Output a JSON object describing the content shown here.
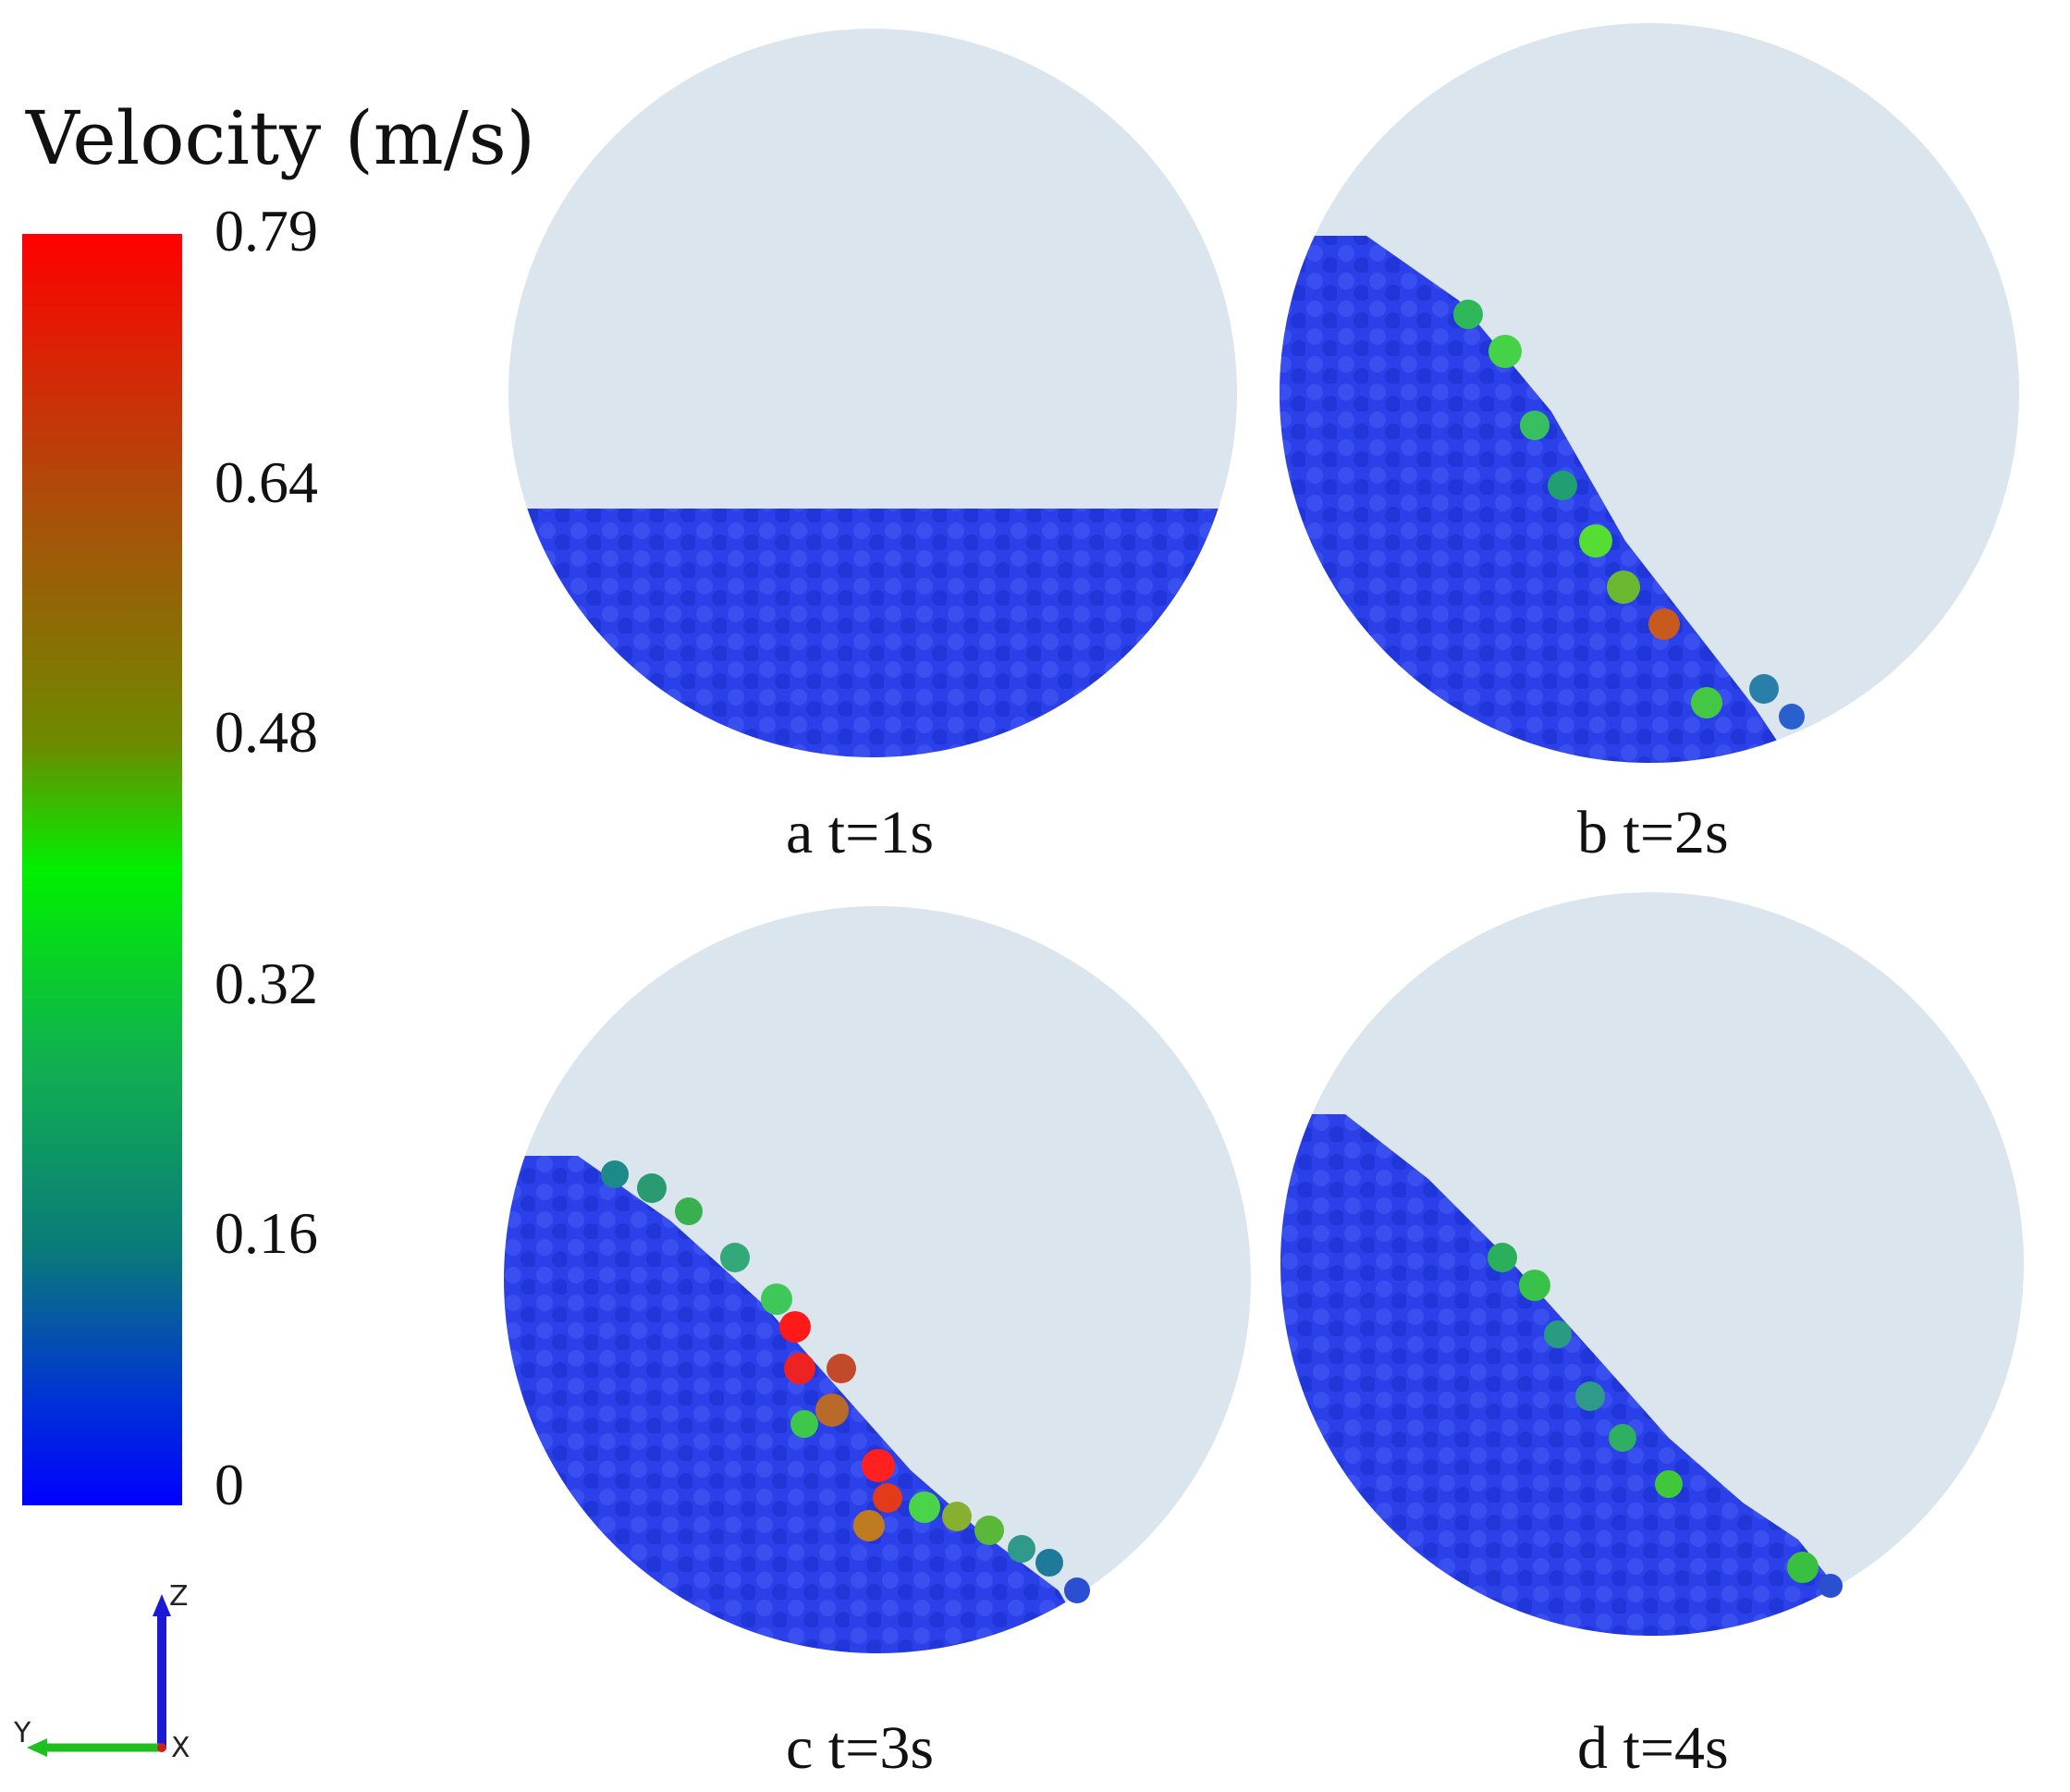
{
  "legend": {
    "title": "Velocity (m/s)",
    "ticks": [
      "0.79",
      "0.64",
      "0.48",
      "0.32",
      "0.16",
      "0"
    ],
    "min": 0,
    "max": 0.79,
    "colors": [
      "#ff0000",
      "#b04a0a",
      "#6e8a00",
      "#00f000",
      "#10b050",
      "#0a7a7a",
      "#0000ff"
    ]
  },
  "panels": [
    {
      "caption": "a t=1s",
      "fill_angle": "flat"
    },
    {
      "caption": "b t=2s",
      "fill_angle": "steep"
    },
    {
      "caption": "c t=3s",
      "fill_angle": "steep"
    },
    {
      "caption": "d t=4s",
      "fill_angle": "steep"
    }
  ],
  "axes": {
    "z": "Z",
    "y": "Y",
    "x": "X"
  },
  "colors": {
    "drum": "#dbe5ee",
    "particles": "#2a3fe6"
  }
}
